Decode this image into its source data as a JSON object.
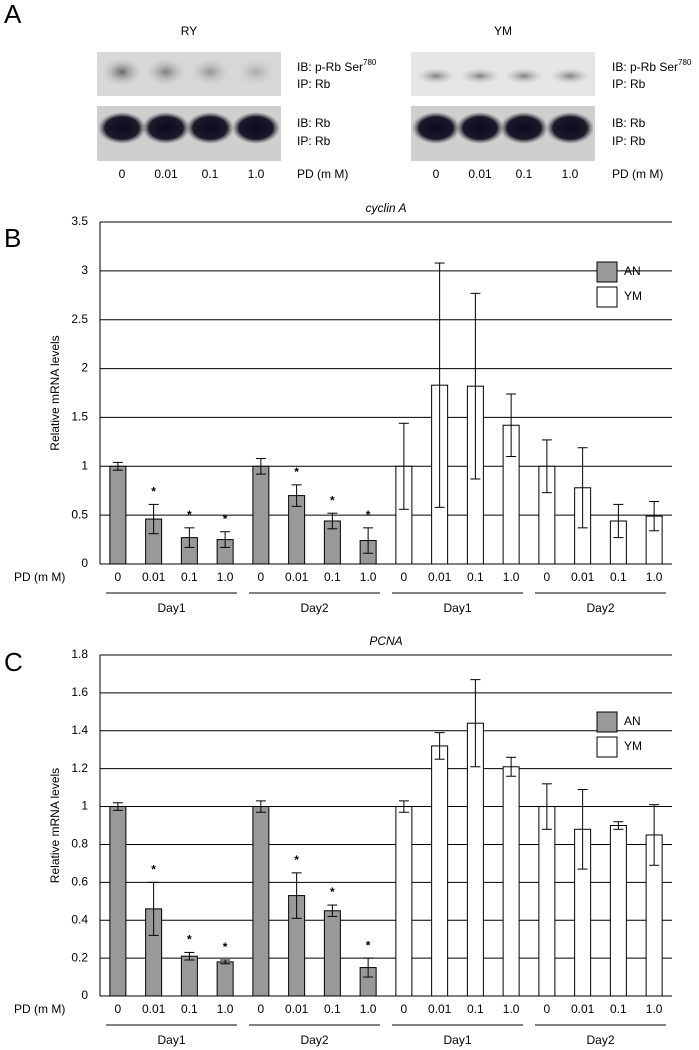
{
  "panels": {
    "a": "A",
    "b": "B",
    "c": "C"
  },
  "blot": {
    "lanes": [
      "0",
      "0.01",
      "0.1",
      "1.0"
    ],
    "axis": "PD (m M)",
    "ib_top": "IB: p-Rb Ser",
    "ib_top_sup": "780",
    "ip_top": "IP: Rb",
    "ib_bottom": "IB: Rb",
    "ip_bottom": "IP: Rb",
    "titles": [
      "RY",
      "YM"
    ]
  },
  "chart_data": [
    {
      "type": "bar",
      "title": "cyclin A",
      "y_label": "Relative mRNA levels",
      "x_label": "PD (m M)",
      "categories": [
        "0",
        "0.01",
        "0.1",
        "1.0",
        "0",
        "0.01",
        "0.1",
        "1.0",
        "0",
        "0.01",
        "0.1",
        "1.0",
        "0",
        "0.01",
        "0.1",
        "1.0"
      ],
      "groups": [
        "Day1",
        "Day2",
        "Day1",
        "Day2"
      ],
      "ylim": [
        0,
        3.5
      ],
      "yticks": [
        0,
        0.5,
        1,
        1.5,
        2,
        2.5,
        3,
        3.5
      ],
      "grid": true,
      "legend": "upper right",
      "series": [
        {
          "name": "AN",
          "color": "#999999",
          "values": [
            1.0,
            0.46,
            0.27,
            0.25,
            1.0,
            0.7,
            0.44,
            0.24,
            null,
            null,
            null,
            null,
            null,
            null,
            null,
            null
          ],
          "errors": [
            0.04,
            0.15,
            0.1,
            0.08,
            0.08,
            0.11,
            0.08,
            0.13,
            null,
            null,
            null,
            null,
            null,
            null,
            null,
            null
          ],
          "labels": [
            null,
            "*",
            "*",
            "*",
            null,
            "*",
            "*",
            "*",
            null,
            null,
            null,
            null,
            null,
            null,
            null,
            null
          ]
        },
        {
          "name": "YM",
          "color": "#ffffff",
          "values": [
            null,
            null,
            null,
            null,
            null,
            null,
            null,
            null,
            1.0,
            1.83,
            1.82,
            1.42,
            1.0,
            0.78,
            0.44,
            0.49
          ],
          "errors": [
            null,
            null,
            null,
            null,
            null,
            null,
            null,
            null,
            0.44,
            1.25,
            0.95,
            0.32,
            0.27,
            0.41,
            0.17,
            0.15
          ]
        }
      ]
    },
    {
      "type": "bar",
      "title": "PCNA",
      "y_label": "Relative mRNA levels",
      "x_label": "PD (m M)",
      "categories": [
        "0",
        "0.01",
        "0.1",
        "1.0",
        "0",
        "0.01",
        "0.1",
        "1.0",
        "0",
        "0.01",
        "0.1",
        "1.0",
        "0",
        "0.01",
        "0.1",
        "1.0"
      ],
      "groups": [
        "Day1",
        "Day2",
        "Day1",
        "Day2"
      ],
      "ylim": [
        0,
        1.8
      ],
      "yticks": [
        0,
        0.2,
        0.4,
        0.6,
        0.8,
        1,
        1.2,
        1.4,
        1.6,
        1.8
      ],
      "grid": true,
      "legend": "upper right",
      "series": [
        {
          "name": "AN",
          "color": "#999999",
          "values": [
            1.0,
            0.46,
            0.21,
            0.18,
            1.0,
            0.53,
            0.45,
            0.15,
            null,
            null,
            null,
            null,
            null,
            null,
            null,
            null
          ],
          "errors": [
            0.02,
            0.14,
            0.02,
            0.01,
            0.03,
            0.12,
            0.03,
            0.05,
            null,
            null,
            null,
            null,
            null,
            null,
            null,
            null
          ],
          "labels": [
            null,
            "*",
            "*",
            "*",
            null,
            "*",
            "*",
            "*",
            null,
            null,
            null,
            null,
            null,
            null,
            null,
            null
          ]
        },
        {
          "name": "YM",
          "color": "#ffffff",
          "values": [
            null,
            null,
            null,
            null,
            null,
            null,
            null,
            null,
            1.0,
            1.32,
            1.44,
            1.21,
            1.0,
            0.88,
            0.9,
            0.85
          ],
          "errors": [
            null,
            null,
            null,
            null,
            null,
            null,
            null,
            null,
            0.03,
            0.07,
            0.23,
            0.05,
            0.12,
            0.21,
            0.02,
            0.16
          ]
        }
      ]
    }
  ]
}
